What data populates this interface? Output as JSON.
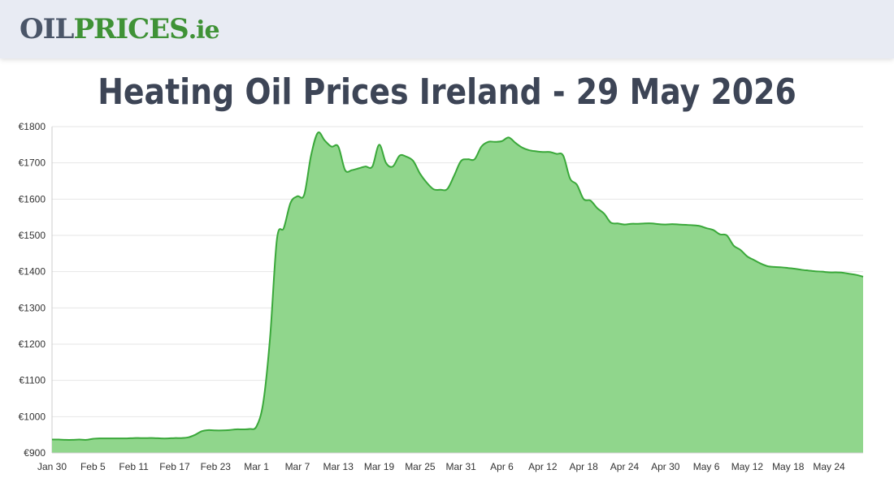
{
  "logo": {
    "part1": "OIL",
    "part2": "PRICES",
    "part3": ".ie",
    "colors": {
      "grey": "#4a5568",
      "green": "#3f9236"
    }
  },
  "title": "Heating Oil Prices Ireland - 29 May 2026",
  "chart_data": {
    "type": "area",
    "title": "",
    "xlabel": "",
    "ylabel": "",
    "ylim": [
      900,
      1800
    ],
    "y_ticks": [
      900,
      1000,
      1100,
      1200,
      1300,
      1400,
      1500,
      1600,
      1700,
      1800
    ],
    "y_tick_labels": [
      "€900",
      "€1000",
      "€1100",
      "€1200",
      "€1300",
      "€1400",
      "€1500",
      "€1600",
      "€1700",
      "€1800"
    ],
    "x_tick_labels": [
      "Jan 30",
      "Feb 5",
      "Feb 11",
      "Feb 17",
      "Feb 23",
      "Mar 1",
      "Mar 7",
      "Mar 13",
      "Mar 19",
      "Mar 25",
      "Mar 31",
      "Apr 6",
      "Apr 12",
      "Apr 18",
      "Apr 24",
      "Apr 30",
      "May 6",
      "May 12",
      "May 18",
      "May 24"
    ],
    "grid": true,
    "legend": "none",
    "colors": {
      "line": "#3aa83a",
      "fill": "#90d68c",
      "grid": "#e6e6e6"
    },
    "x": [
      "2026-01-30",
      "2026-01-31",
      "2026-02-01",
      "2026-02-02",
      "2026-02-03",
      "2026-02-04",
      "2026-02-05",
      "2026-02-06",
      "2026-02-07",
      "2026-02-08",
      "2026-02-09",
      "2026-02-10",
      "2026-02-11",
      "2026-02-12",
      "2026-02-13",
      "2026-02-14",
      "2026-02-15",
      "2026-02-16",
      "2026-02-17",
      "2026-02-18",
      "2026-02-19",
      "2026-02-20",
      "2026-02-21",
      "2026-02-22",
      "2026-02-23",
      "2026-02-24",
      "2026-02-25",
      "2026-02-26",
      "2026-02-27",
      "2026-02-28",
      "2026-03-01",
      "2026-03-02",
      "2026-03-03",
      "2026-03-04",
      "2026-03-05",
      "2026-03-06",
      "2026-03-07",
      "2026-03-08",
      "2026-03-09",
      "2026-03-10",
      "2026-03-11",
      "2026-03-12",
      "2026-03-13",
      "2026-03-14",
      "2026-03-15",
      "2026-03-16",
      "2026-03-17",
      "2026-03-18",
      "2026-03-19",
      "2026-03-20",
      "2026-03-21",
      "2026-03-22",
      "2026-03-23",
      "2026-03-24",
      "2026-03-25",
      "2026-03-26",
      "2026-03-27",
      "2026-03-28",
      "2026-03-29",
      "2026-03-30",
      "2026-03-31",
      "2026-04-01",
      "2026-04-02",
      "2026-04-03",
      "2026-04-04",
      "2026-04-05",
      "2026-04-06",
      "2026-04-07",
      "2026-04-08",
      "2026-04-09",
      "2026-04-10",
      "2026-04-11",
      "2026-04-12",
      "2026-04-13",
      "2026-04-14",
      "2026-04-15",
      "2026-04-16",
      "2026-04-17",
      "2026-04-18",
      "2026-04-19",
      "2026-04-20",
      "2026-04-21",
      "2026-04-22",
      "2026-04-23",
      "2026-04-24",
      "2026-04-25",
      "2026-04-26",
      "2026-04-27",
      "2026-04-28",
      "2026-04-29",
      "2026-04-30",
      "2026-05-01",
      "2026-05-02",
      "2026-05-03",
      "2026-05-04",
      "2026-05-05",
      "2026-05-06",
      "2026-05-07",
      "2026-05-08",
      "2026-05-09",
      "2026-05-10",
      "2026-05-11",
      "2026-05-12",
      "2026-05-13",
      "2026-05-14",
      "2026-05-15",
      "2026-05-16",
      "2026-05-17",
      "2026-05-18",
      "2026-05-19",
      "2026-05-20",
      "2026-05-21",
      "2026-05-22",
      "2026-05-23",
      "2026-05-24",
      "2026-05-25",
      "2026-05-26",
      "2026-05-27",
      "2026-05-28",
      "2026-05-29"
    ],
    "series": [
      {
        "values": [
          937,
          937,
          936,
          936,
          937,
          936,
          939,
          940,
          940,
          940,
          940,
          940,
          941,
          941,
          941,
          941,
          940,
          940,
          941,
          941,
          943,
          950,
          960,
          963,
          962,
          962,
          963,
          965,
          965,
          966,
          973,
          1040,
          1220,
          1490,
          1520,
          1590,
          1608,
          1612,
          1720,
          1783,
          1762,
          1745,
          1745,
          1680,
          1680,
          1685,
          1690,
          1690,
          1750,
          1700,
          1690,
          1720,
          1717,
          1705,
          1670,
          1645,
          1627,
          1626,
          1628,
          1665,
          1705,
          1710,
          1710,
          1745,
          1758,
          1758,
          1760,
          1770,
          1755,
          1742,
          1735,
          1732,
          1730,
          1730,
          1725,
          1720,
          1657,
          1640,
          1600,
          1596,
          1575,
          1560,
          1535,
          1533,
          1530,
          1532,
          1532,
          1533,
          1533,
          1531,
          1530,
          1531,
          1530,
          1529,
          1528,
          1526,
          1520,
          1515,
          1503,
          1500,
          1472,
          1460,
          1442,
          1432,
          1422,
          1415,
          1413,
          1412,
          1410,
          1408,
          1405,
          1403,
          1401,
          1400,
          1398,
          1398,
          1397,
          1394,
          1391,
          1386
        ]
      }
    ]
  }
}
